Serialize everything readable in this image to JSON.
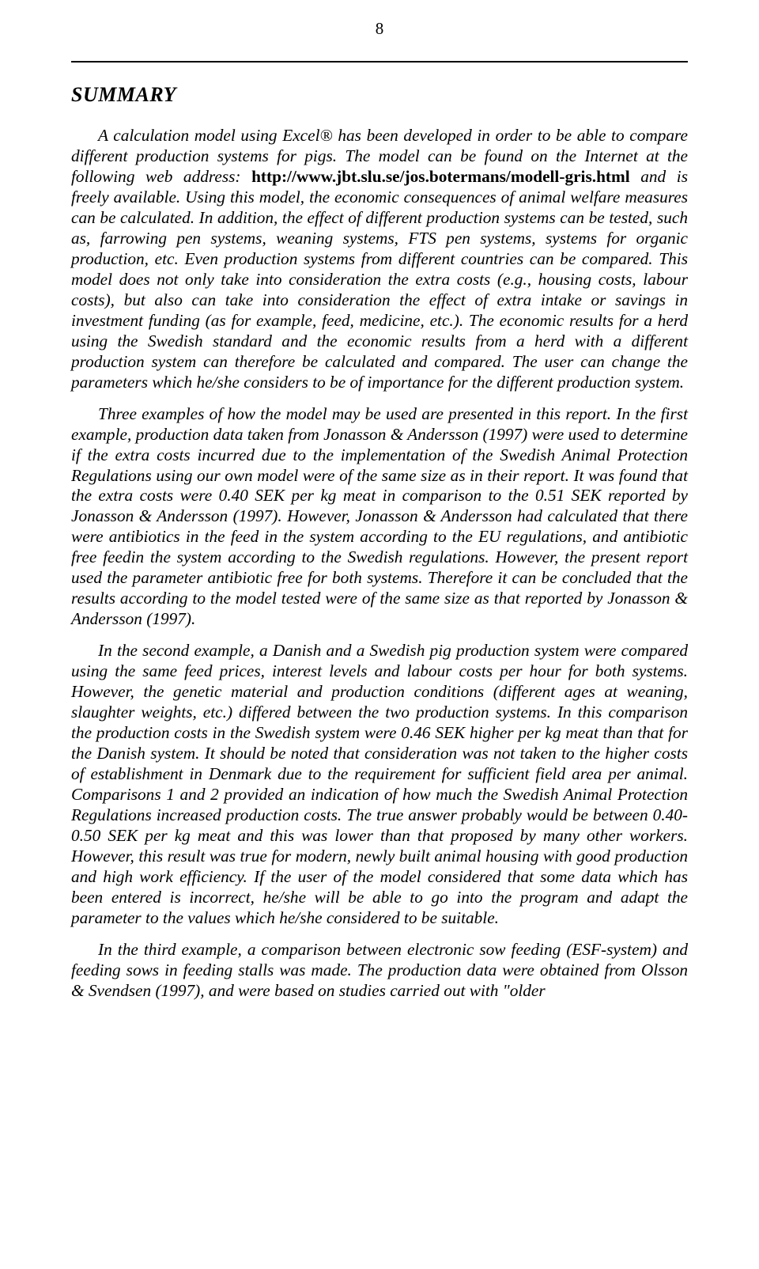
{
  "pageNumber": "8",
  "heading": "SUMMARY",
  "link": "http://www.jbt.slu.se/jos.botermans/modell-gris.html",
  "p1a": "A calculation model using Excel® has been developed in order to be able to compare different production systems for pigs. The model can be found on the Internet at the following web address: ",
  "p1b": " and is freely available. Using this model, the economic consequences of animal welfare measures can be calculated. In addition, the effect of different production systems can be tested, such as, farrowing pen systems, weaning systems, FTS pen systems, systems for organic production, etc. Even production systems from different countries can be compared. This model does not only take into consideration the extra costs (e.g., housing costs, labour costs), but also can take into consideration the effect of extra intake or savings in investment funding (as for example, feed, medicine, etc.). The economic results for a herd using the Swedish standard and the economic results from a herd with a different production system can therefore be calculated and compared. The user can change the parameters which he/she considers to be of importance for the different production system.",
  "p2": "Three examples of how the model may be used are presented in this report. In the first example, production data taken from Jonasson & Andersson (1997) were used to determine if the extra costs incurred due to the implementation of the Swedish Animal Protection Regulations using our own model were of the same size as in their report. It was found that the extra costs were 0.40 SEK per kg meat in comparison to the 0.51 SEK reported by Jonasson & Andersson (1997). However, Jonasson & Andersson had calculated that there were antibiotics in the feed in the system according to the EU regulations, and antibiotic free feedin the system according to the Swedish regulations. However, the present report used the parameter antibiotic free for both systems. Therefore it can be concluded that the results according to the model tested were of the same size as that reported by Jonasson & Andersson (1997).",
  "p3": "In the second example, a Danish and a Swedish pig production system were compared using the same feed prices, interest levels and labour costs per hour for both systems. However, the genetic material and production conditions (different ages at weaning, slaughter weights, etc.) differed between the two production systems. In this comparison the production costs in the Swedish system were 0.46 SEK higher per kg meat than that for the Danish system. It should be noted that consideration was not taken to the higher costs of establishment in Denmark due to the requirement for sufficient field area per animal. Comparisons 1 and 2 provided an indication of how much the Swedish Animal Protection Regulations increased production costs. The true answer probably would be between 0.40-0.50 SEK per kg meat and this was lower than that proposed by many other workers. However, this result was true for modern, newly built animal housing with good production and high work efficiency. If the user of the model considered that some data which has been entered is incorrect, he/she will be able to go into the program and adapt the parameter to the values which he/she considered to be suitable.",
  "p4": "In the third example, a comparison between electronic sow feeding (ESF-system) and feeding sows in feeding stalls was made. The production data were obtained from Olsson & Svendsen (1997), and were based on studies carried out with \"older"
}
